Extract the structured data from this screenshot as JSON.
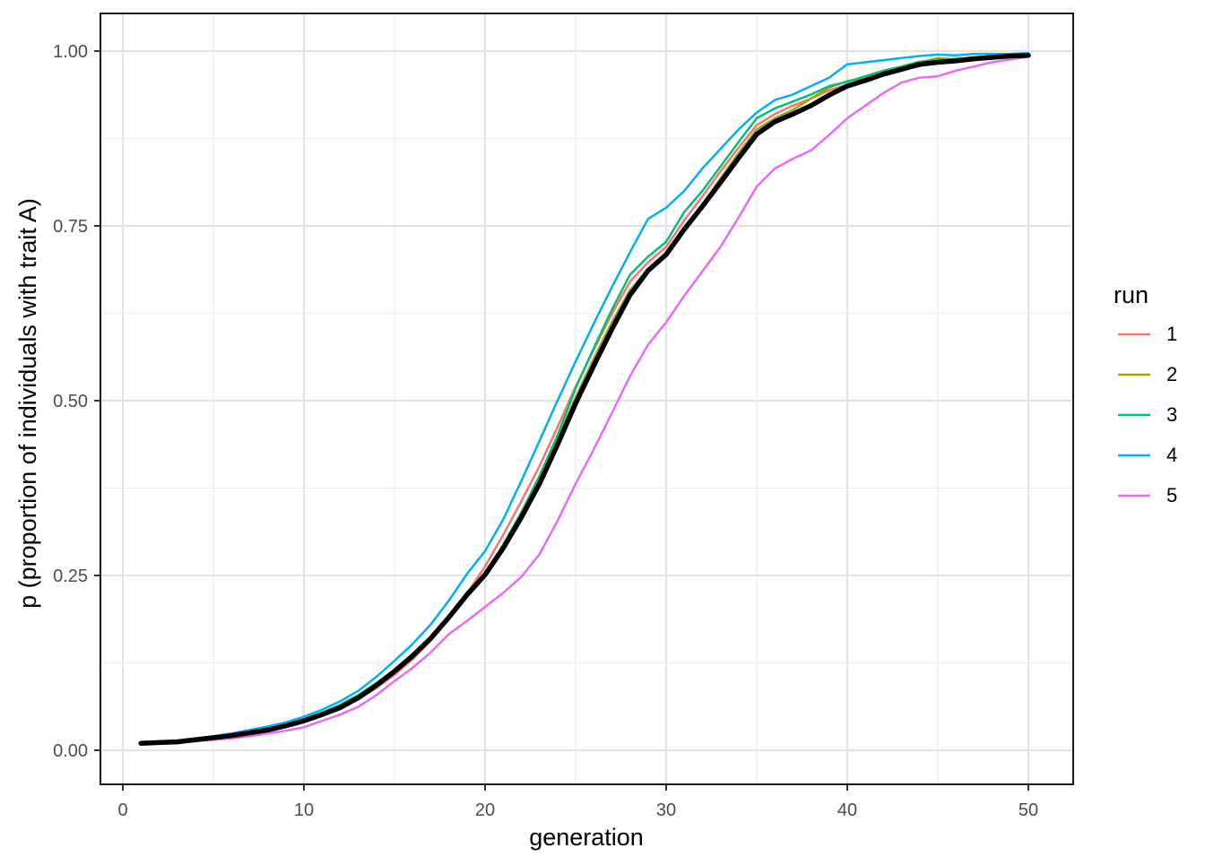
{
  "chart_data": {
    "type": "line",
    "title": "",
    "xlabel": "generation",
    "ylabel": "p (proportion of individuals with trait A)",
    "x_ticks": [
      0,
      10,
      20,
      30,
      40,
      50
    ],
    "x_tick_labels": [
      "0",
      "10",
      "20",
      "30",
      "40",
      "50"
    ],
    "y_ticks": [
      0,
      0.25,
      0.5,
      0.75,
      1
    ],
    "y_tick_labels": [
      "0.00",
      "0.25",
      "0.50",
      "0.75",
      "1.00"
    ],
    "xlim": [
      -1.45,
      52.45
    ],
    "ylim": [
      -0.049,
      1.054
    ],
    "grid": "major and minor gridlines, light gray on white panel, black panel border",
    "legend": {
      "title": "run",
      "position": "right",
      "entries": [
        "1",
        "2",
        "3",
        "4",
        "5"
      ]
    },
    "x": [
      1,
      2,
      3,
      4,
      5,
      6,
      7,
      8,
      9,
      10,
      11,
      12,
      13,
      14,
      15,
      16,
      17,
      18,
      19,
      20,
      21,
      22,
      23,
      24,
      25,
      26,
      27,
      28,
      29,
      30,
      31,
      32,
      33,
      34,
      35,
      36,
      37,
      38,
      39,
      40,
      41,
      42,
      43,
      44,
      45,
      46,
      47,
      48,
      49,
      50
    ],
    "series": [
      {
        "name": "1",
        "color": "#F8766D",
        "width": 2.5,
        "in_legend": true,
        "values": [
          0.009,
          0.01,
          0.012,
          0.014,
          0.017,
          0.02,
          0.024,
          0.028,
          0.034,
          0.041,
          0.05,
          0.06,
          0.073,
          0.089,
          0.108,
          0.13,
          0.157,
          0.189,
          0.224,
          0.263,
          0.308,
          0.356,
          0.406,
          0.462,
          0.52,
          0.573,
          0.624,
          0.67,
          0.698,
          0.72,
          0.758,
          0.792,
          0.828,
          0.862,
          0.894,
          0.91,
          0.922,
          0.932,
          0.944,
          0.952,
          0.96,
          0.967,
          0.973,
          0.979,
          0.983,
          0.986,
          0.988,
          0.99,
          0.992,
          0.993
        ]
      },
      {
        "name": "2",
        "color": "#A3A500",
        "width": 2.5,
        "in_legend": true,
        "values": [
          0.01,
          0.011,
          0.013,
          0.015,
          0.018,
          0.021,
          0.025,
          0.03,
          0.036,
          0.044,
          0.053,
          0.064,
          0.078,
          0.094,
          0.113,
          0.136,
          0.16,
          0.19,
          0.222,
          0.248,
          0.29,
          0.336,
          0.386,
          0.444,
          0.505,
          0.56,
          0.612,
          0.658,
          0.688,
          0.71,
          0.748,
          0.78,
          0.818,
          0.854,
          0.888,
          0.904,
          0.916,
          0.932,
          0.948,
          0.957,
          0.962,
          0.97,
          0.976,
          0.984,
          0.99,
          0.988,
          0.99,
          0.992,
          0.994,
          0.995
        ]
      },
      {
        "name": "3",
        "color": "#00BF7D",
        "width": 2.5,
        "in_legend": true,
        "values": [
          0.01,
          0.011,
          0.013,
          0.016,
          0.019,
          0.022,
          0.026,
          0.031,
          0.037,
          0.045,
          0.054,
          0.065,
          0.079,
          0.096,
          0.115,
          0.138,
          0.162,
          0.192,
          0.226,
          0.252,
          0.294,
          0.34,
          0.392,
          0.45,
          0.518,
          0.575,
          0.63,
          0.68,
          0.706,
          0.727,
          0.77,
          0.8,
          0.835,
          0.87,
          0.904,
          0.918,
          0.928,
          0.938,
          0.95,
          0.956,
          0.964,
          0.972,
          0.978,
          0.985,
          0.987,
          0.989,
          0.991,
          0.993,
          0.994,
          0.995
        ]
      },
      {
        "name": "4",
        "color": "#00B0F6",
        "width": 2.5,
        "in_legend": true,
        "values": [
          0.01,
          0.012,
          0.014,
          0.017,
          0.02,
          0.024,
          0.029,
          0.034,
          0.04,
          0.048,
          0.058,
          0.07,
          0.085,
          0.105,
          0.128,
          0.152,
          0.18,
          0.214,
          0.252,
          0.285,
          0.33,
          0.385,
          0.442,
          0.5,
          0.556,
          0.61,
          0.662,
          0.712,
          0.76,
          0.776,
          0.8,
          0.832,
          0.86,
          0.888,
          0.912,
          0.93,
          0.938,
          0.95,
          0.962,
          0.981,
          0.984,
          0.987,
          0.99,
          0.993,
          0.995,
          0.994,
          0.996,
          0.996,
          0.996,
          0.997
        ]
      },
      {
        "name": "5",
        "color": "#E76BF3",
        "width": 2.5,
        "in_legend": true,
        "values": [
          0.009,
          0.01,
          0.011,
          0.013,
          0.015,
          0.017,
          0.02,
          0.024,
          0.028,
          0.033,
          0.042,
          0.051,
          0.062,
          0.079,
          0.099,
          0.118,
          0.14,
          0.166,
          0.185,
          0.205,
          0.225,
          0.248,
          0.28,
          0.328,
          0.381,
          0.43,
          0.482,
          0.535,
          0.58,
          0.612,
          0.65,
          0.685,
          0.72,
          0.762,
          0.806,
          0.832,
          0.846,
          0.858,
          0.88,
          0.904,
          0.922,
          0.94,
          0.955,
          0.962,
          0.964,
          0.972,
          0.978,
          0.984,
          0.988,
          0.992
        ]
      },
      {
        "name": "mean",
        "color": "#000000",
        "width": 5.5,
        "in_legend": false,
        "values": [
          0.01,
          0.011,
          0.012,
          0.015,
          0.018,
          0.021,
          0.025,
          0.029,
          0.035,
          0.042,
          0.051,
          0.061,
          0.075,
          0.093,
          0.113,
          0.135,
          0.16,
          0.19,
          0.222,
          0.251,
          0.289,
          0.333,
          0.381,
          0.437,
          0.496,
          0.55,
          0.602,
          0.651,
          0.686,
          0.709,
          0.745,
          0.778,
          0.812,
          0.847,
          0.881,
          0.899,
          0.91,
          0.922,
          0.937,
          0.95,
          0.958,
          0.967,
          0.974,
          0.981,
          0.984,
          0.986,
          0.989,
          0.991,
          0.993,
          0.994
        ]
      }
    ]
  },
  "colors": {
    "background": "#FFFFFF",
    "grid_major": "#E3E3E3",
    "grid_minor": "#EFEFEF",
    "panel_border": "#1A1A1A",
    "tick_mark": "#333333",
    "axis_text": "#4D4D4D",
    "run_1": "#F8766D",
    "run_2": "#A3A500",
    "run_3": "#00BF7D",
    "run_4": "#00B0F6",
    "run_5": "#E76BF3",
    "mean_line": "#000000"
  }
}
